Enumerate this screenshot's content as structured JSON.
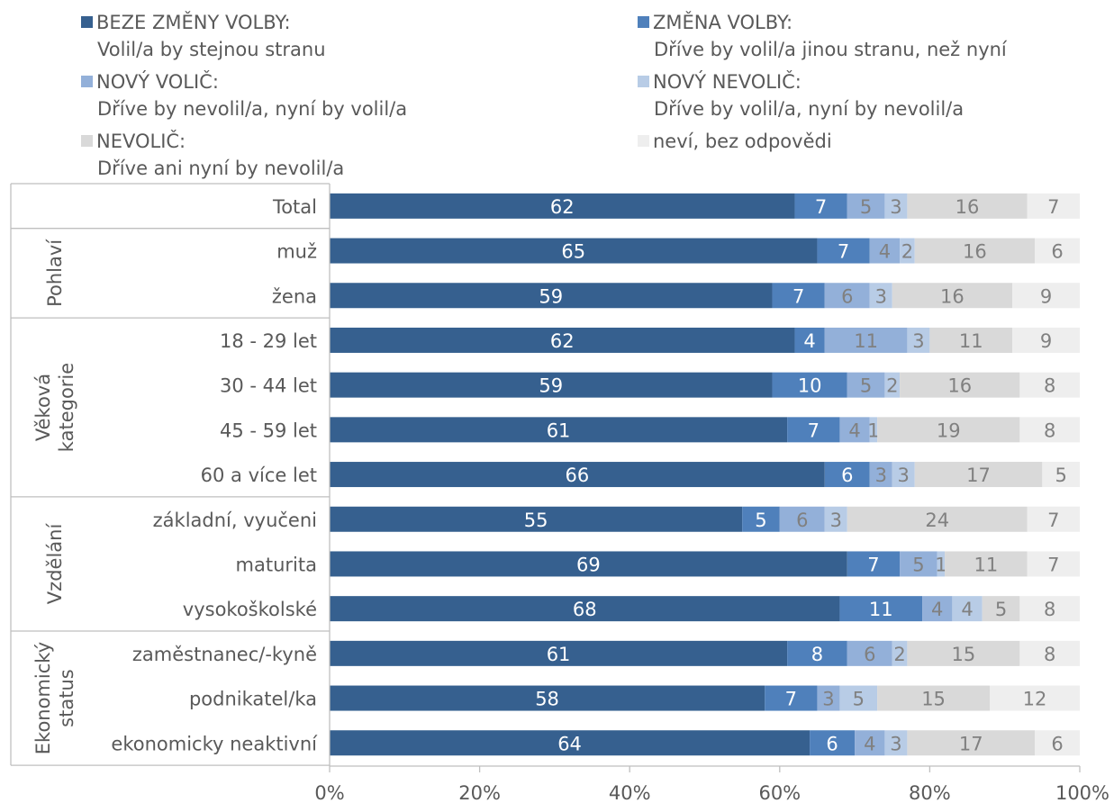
{
  "legend": [
    {
      "line1": "BEZE ZMĚNY VOLBY:",
      "line2": "Volil/a by stejnou stranu",
      "color": "#36608f"
    },
    {
      "line1": "ZMĚNA VOLBY:",
      "line2": "Dříve by volil/a jinou stranu, než nyní",
      "color": "#4f80bb"
    },
    {
      "line1": "NOVÝ VOLIČ:",
      "line2": "Dříve by nevolil/a, nyní by volil/a",
      "color": "#93b0d9"
    },
    {
      "line1": "NOVÝ NEVOLIČ:",
      "line2": "Dříve by volil/a, nyní by nevolil/a",
      "color": "#b8cce6"
    },
    {
      "line1": "NEVOLIČ:",
      "line2": "Dříve ani nyní by nevolil/a",
      "color": "#d9d9d9"
    },
    {
      "line1": "neví, bez odpovědi",
      "line2": "",
      "color": "#eeeeee"
    }
  ],
  "chart_data": {
    "type": "bar",
    "orientation": "horizontal",
    "stacked": "percent",
    "groups": [
      {
        "name": "",
        "rows": [
          "Total"
        ]
      },
      {
        "name": "Pohlaví",
        "rows": [
          "muž",
          "žena"
        ]
      },
      {
        "name": "Věková kategorie",
        "rows": [
          "18 - 29 let",
          "30 - 44 let",
          "45 - 59 let",
          "60 a více let"
        ]
      },
      {
        "name": "Vzdělání",
        "rows": [
          "základní, vyučeni",
          "maturita",
          "vysokoškolské"
        ]
      },
      {
        "name": "Ekonomický status",
        "rows": [
          "zaměstnanec/-kyně",
          "podnikatel/ka",
          "ekonomicky neaktivní"
        ]
      }
    ],
    "categories": [
      "Total",
      "muž",
      "žena",
      "18 - 29 let",
      "30 - 44 let",
      "45 - 59 let",
      "60 a více let",
      "základní, vyučeni",
      "maturita",
      "vysokoškolské",
      "zaměstnanec/-kyně",
      "podnikatel/ka",
      "ekonomicky neaktivní"
    ],
    "series": [
      {
        "name": "BEZE ZMĚNY VOLBY",
        "color": "#36608f",
        "label_color": "#ffffff",
        "values": [
          62,
          65,
          59,
          62,
          59,
          61,
          66,
          55,
          69,
          68,
          61,
          58,
          64
        ]
      },
      {
        "name": "ZMĚNA VOLBY",
        "color": "#4f80bb",
        "label_color": "#ffffff",
        "values": [
          7,
          7,
          7,
          4,
          10,
          7,
          6,
          5,
          7,
          11,
          8,
          7,
          6
        ]
      },
      {
        "name": "NOVÝ VOLIČ",
        "color": "#93b0d9",
        "label_color": "#808080",
        "values": [
          5,
          4,
          6,
          11,
          5,
          4,
          3,
          6,
          5,
          4,
          6,
          3,
          4
        ]
      },
      {
        "name": "NOVÝ NEVOLIČ",
        "color": "#b8cce6",
        "label_color": "#808080",
        "values": [
          3,
          2,
          3,
          3,
          2,
          1,
          3,
          3,
          1,
          4,
          2,
          5,
          3
        ]
      },
      {
        "name": "NEVOLIČ",
        "color": "#d9d9d9",
        "label_color": "#808080",
        "values": [
          16,
          16,
          16,
          11,
          16,
          19,
          17,
          24,
          11,
          5,
          15,
          15,
          17
        ]
      },
      {
        "name": "neví, bez odpovědi",
        "color": "#eeeeee",
        "label_color": "#808080",
        "values": [
          7,
          6,
          9,
          9,
          8,
          8,
          5,
          7,
          7,
          8,
          8,
          12,
          6
        ]
      }
    ],
    "xlim": [
      0,
      100
    ],
    "xticks": [
      "0%",
      "20%",
      "40%",
      "60%",
      "80%",
      "100%"
    ],
    "grid": false,
    "legend_position": "top"
  }
}
